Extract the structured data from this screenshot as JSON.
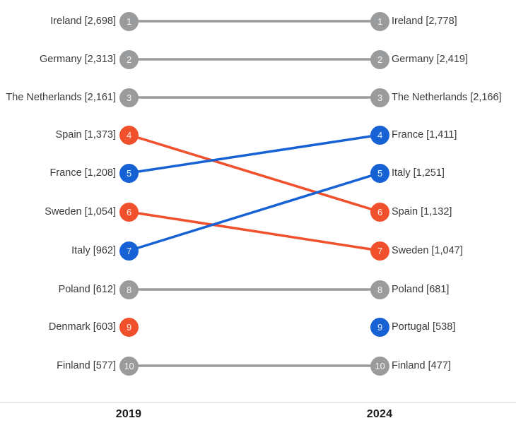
{
  "chart_data": {
    "type": "line",
    "variant": "slope-rank-bump",
    "title": "",
    "columns": [
      "2019",
      "2024"
    ],
    "rank_range": [
      1,
      10
    ],
    "legend": "none",
    "grid": false,
    "colors": {
      "gray": "#999b9d",
      "orange": "#F1502D",
      "blue": "#1661D4",
      "axis_rule": "#e9e9e9",
      "label_text": "#3a3a3a",
      "axis_text": "#1b1b1b"
    },
    "left_axis": {
      "label": "2019",
      "items": [
        {
          "rank": 1,
          "country": "Ireland",
          "value": "2,698",
          "color": "gray"
        },
        {
          "rank": 2,
          "country": "Germany",
          "value": "2,313",
          "color": "gray"
        },
        {
          "rank": 3,
          "country": "The Netherlands",
          "value": "2,161",
          "color": "gray"
        },
        {
          "rank": 4,
          "country": "Spain",
          "value": "1,373",
          "color": "orange"
        },
        {
          "rank": 5,
          "country": "France",
          "value": "1,208",
          "color": "blue"
        },
        {
          "rank": 6,
          "country": "Sweden",
          "value": "1,054",
          "color": "orange"
        },
        {
          "rank": 7,
          "country": "Italy",
          "value": "962",
          "color": "blue"
        },
        {
          "rank": 8,
          "country": "Poland",
          "value": "612",
          "color": "gray"
        },
        {
          "rank": 9,
          "country": "Denmark",
          "value": "603",
          "color": "orange"
        },
        {
          "rank": 10,
          "country": "Finland",
          "value": "577",
          "color": "gray"
        }
      ]
    },
    "right_axis": {
      "label": "2024",
      "items": [
        {
          "rank": 1,
          "country": "Ireland",
          "value": "2,778",
          "color": "gray"
        },
        {
          "rank": 2,
          "country": "Germany",
          "value": "2,419",
          "color": "gray"
        },
        {
          "rank": 3,
          "country": "The Netherlands",
          "value": "2,166",
          "color": "gray"
        },
        {
          "rank": 4,
          "country": "France",
          "value": "1,411",
          "color": "blue"
        },
        {
          "rank": 5,
          "country": "Italy",
          "value": "1,251",
          "color": "blue"
        },
        {
          "rank": 6,
          "country": "Spain",
          "value": "1,132",
          "color": "orange"
        },
        {
          "rank": 7,
          "country": "Sweden",
          "value": "1,047",
          "color": "orange"
        },
        {
          "rank": 8,
          "country": "Poland",
          "value": "681",
          "color": "gray"
        },
        {
          "rank": 9,
          "country": "Portugal",
          "value": "538",
          "color": "blue"
        },
        {
          "rank": 10,
          "country": "Finland",
          "value": "477",
          "color": "gray"
        }
      ]
    },
    "links": [
      {
        "from": 1,
        "to": 1,
        "color": "gray"
      },
      {
        "from": 2,
        "to": 2,
        "color": "gray"
      },
      {
        "from": 3,
        "to": 3,
        "color": "gray"
      },
      {
        "from": 4,
        "to": 6,
        "color": "orange"
      },
      {
        "from": 5,
        "to": 4,
        "color": "blue"
      },
      {
        "from": 6,
        "to": 7,
        "color": "orange"
      },
      {
        "from": 7,
        "to": 5,
        "color": "blue"
      },
      {
        "from": 8,
        "to": 8,
        "color": "gray"
      },
      {
        "from": 10,
        "to": 10,
        "color": "gray"
      }
    ]
  }
}
